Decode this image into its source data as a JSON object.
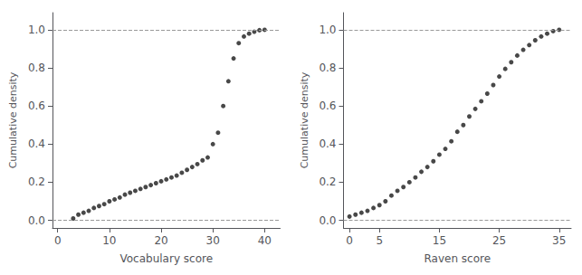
{
  "chart_data": [
    {
      "type": "scatter",
      "x": [
        3,
        4,
        5,
        6,
        7,
        8,
        9,
        10,
        11,
        12,
        13,
        14,
        15,
        16,
        17,
        18,
        19,
        20,
        21,
        22,
        23,
        24,
        25,
        26,
        27,
        28,
        29,
        30,
        31,
        32,
        33,
        34,
        35,
        36,
        37,
        38,
        39,
        40
      ],
      "values": [
        0.01,
        0.03,
        0.04,
        0.05,
        0.065,
        0.075,
        0.085,
        0.1,
        0.11,
        0.12,
        0.135,
        0.145,
        0.155,
        0.165,
        0.175,
        0.185,
        0.195,
        0.205,
        0.215,
        0.225,
        0.235,
        0.25,
        0.265,
        0.28,
        0.295,
        0.315,
        0.33,
        0.4,
        0.46,
        0.6,
        0.73,
        0.85,
        0.93,
        0.965,
        0.98,
        0.99,
        0.998,
        1.0
      ],
      "color": "#1a1a1a",
      "marker": "circle",
      "xlabel": "Vocabulary score",
      "ylabel": "Cumulative density",
      "xlim": [
        -1,
        43
      ],
      "xticks": [
        0,
        10,
        20,
        30,
        40
      ],
      "ylim": [
        -0.04,
        1.09
      ],
      "yticks": [
        {
          "value": 0.0,
          "label": "0.0"
        },
        0.2,
        0.4,
        0.6,
        0.8,
        {
          "value": 1.0,
          "label": "1.0"
        }
      ],
      "hlines": {
        "values": [
          0.0,
          1.0
        ],
        "color": "#999999",
        "line_style": "dashed"
      },
      "grid": false
    },
    {
      "type": "scatter",
      "x": [
        0,
        1,
        2,
        3,
        4,
        5,
        6,
        7,
        8,
        9,
        10,
        11,
        12,
        13,
        14,
        15,
        16,
        17,
        18,
        19,
        20,
        21,
        22,
        23,
        24,
        25,
        26,
        27,
        28,
        29,
        30,
        31,
        32,
        33,
        34,
        35
      ],
      "values": [
        0.02,
        0.03,
        0.04,
        0.05,
        0.065,
        0.08,
        0.1,
        0.13,
        0.155,
        0.175,
        0.2,
        0.225,
        0.255,
        0.28,
        0.31,
        0.345,
        0.375,
        0.415,
        0.465,
        0.5,
        0.545,
        0.585,
        0.625,
        0.665,
        0.71,
        0.755,
        0.795,
        0.83,
        0.865,
        0.895,
        0.92,
        0.945,
        0.965,
        0.98,
        0.993,
        1.0
      ],
      "color": "#1a1a1a",
      "marker": "circle",
      "xlabel": "Raven score",
      "ylabel": "Cumulative density",
      "xlim": [
        -1,
        37
      ],
      "xticks": [
        0,
        5,
        15,
        25,
        35
      ],
      "ylim": [
        -0.04,
        1.09
      ],
      "yticks": [
        {
          "value": 0.0,
          "label": "0.0"
        },
        0.2,
        0.4,
        0.6,
        0.8,
        {
          "value": 1.0,
          "label": "1.0"
        }
      ],
      "hlines": {
        "values": [
          0.0,
          1.0
        ],
        "color": "#999999",
        "line_style": "dashed"
      },
      "grid": false
    }
  ]
}
